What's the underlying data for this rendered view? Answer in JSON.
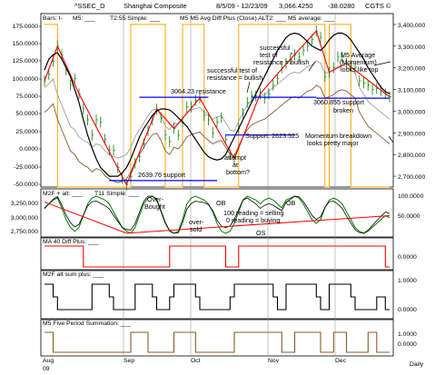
{
  "header": {
    "symbol": "^SSEC_D",
    "name": "Shanghai Composite",
    "dates": "8/5/09 - 12/23/09",
    "last": "3,066.4250",
    "change": "-38.0280",
    "copyright": "CGTS ©"
  },
  "colors": {
    "price_bars": "#008000",
    "m5": "#d3d3d3",
    "t2_simple": "#ff0000",
    "diff_alt2": "#ffa500",
    "m5_average": "#000000",
    "support_line": "#0000ff",
    "annotation_arrow": "#000000",
    "panel_red": "#ff0000",
    "panel_green": "#008000",
    "panel_black": "#000000",
    "panel_brown": "#8b5a2b"
  },
  "chart_data": [
    {
      "type": "line",
      "panel": "price",
      "legend": [
        "Bars: I-",
        "M5: ___",
        "T2.55 Simple: ___",
        "M5 M5 Avg Diff Plus (Close) ALT2: ___",
        "M5 average: ___"
      ],
      "x_labels": [
        "Aug",
        "Sep",
        "Oct",
        "Nov",
        "Dec"
      ],
      "x_sublabel": "09",
      "frequency": "Daily",
      "left_ticks": [
        "175.0000",
        "150.0000",
        "125.0000",
        "100.0000",
        "75.0000",
        "50.0000",
        "25.0000",
        "0.0000",
        "-25.0000",
        "-50.0000"
      ],
      "right_ticks": [
        "3,400,000",
        "3,300,000",
        "3,200,000",
        "3,100,000",
        "3,000,000",
        "2,900,000",
        "2,800,000",
        "2,700,000"
      ],
      "right_ylim": [
        2650,
        3450
      ],
      "left_ylim": [
        -65,
        180
      ],
      "price_close": [
        3140,
        3170,
        3230,
        3300,
        3260,
        3190,
        3120,
        3150,
        3080,
        3010,
        2960,
        2890,
        2960,
        2950,
        2870,
        2820,
        2820,
        2740,
        2690,
        2660,
        2700,
        2760,
        2790,
        2850,
        2910,
        2960,
        3010,
        2970,
        2890,
        2860,
        2920,
        2890,
        2950,
        3020,
        3020,
        3050,
        3060,
        2980,
        2960,
        2900,
        2950,
        2970,
        2870,
        2800,
        2780,
        2920,
        2990,
        3040,
        3070,
        3070,
        3080,
        3060,
        3080,
        3120,
        3150,
        3200,
        3220,
        3240,
        3260,
        3250,
        3280,
        3300,
        3330,
        3370,
        3340,
        3160,
        3180,
        3200,
        3250,
        3250,
        3220,
        3210,
        3200,
        3140,
        3130,
        3120,
        3100,
        3105,
        3095,
        3080,
        3066
      ],
      "m5_average": [
        3190,
        3240,
        3260,
        3270,
        3240,
        3200,
        3160,
        3100,
        3040,
        2960,
        2890,
        2830,
        2780,
        2740,
        2720,
        2700,
        2700,
        2700,
        2715,
        2740,
        2780,
        2830,
        2880,
        2920,
        2950,
        2980,
        3000,
        3010,
        3010,
        3005,
        2990,
        2970,
        2950,
        2930,
        2900,
        2870,
        2840,
        2810,
        2790,
        2780,
        2775,
        2780,
        2800,
        2840,
        2880,
        2920,
        2960,
        3000,
        3040,
        3080,
        3120,
        3160,
        3200,
        3240,
        3280,
        3310,
        3340,
        3355,
        3360,
        3355,
        3340,
        3320,
        3300,
        3290,
        3280,
        3300,
        3330,
        3350,
        3360,
        3360,
        3350,
        3330,
        3300,
        3270,
        3240,
        3200,
        3170,
        3140,
        3110,
        3090,
        3080
      ],
      "annotations": [
        "3064.23 resistance",
        "successful test of resistance = bullish",
        "successful test of resistance = bullish",
        "M5 Average (Momentum) looks like top",
        "3060.855 support broken",
        "Support: 2623.525",
        "Momentum breakdown looks pretty major",
        "2639.76 support",
        "attempt at bottom?"
      ]
    },
    {
      "type": "line",
      "panel": "m2f",
      "legend": [
        "M2F + alt: ___",
        "T11 Simple: ___"
      ],
      "left_ticks": [
        "3,250,000",
        "3,000,000",
        "2,750,000"
      ],
      "right_ticks": [
        "100.0000",
        "50.0000"
      ],
      "ylim": [
        0,
        100
      ],
      "annotations": [
        "Over-Bought",
        "over-sold",
        "OB",
        "OS",
        "OB",
        "100 reading = selling",
        "0 reading = buying"
      ]
    },
    {
      "type": "area",
      "panel": "ma40",
      "legend": [
        "MA 40 Diff Plus: ___"
      ],
      "right_ticks": [
        "0.0000"
      ]
    },
    {
      "type": "line",
      "panel": "m2f_alt",
      "legend": [
        "M2F alt sum plus: ___"
      ],
      "right_ticks": [
        "1.0000",
        "0.0000"
      ]
    },
    {
      "type": "line",
      "panel": "m5_five",
      "legend": [
        "M5 Five Period Summation: ___"
      ],
      "right_ticks": [
        "1.0000",
        "0.0000"
      ]
    }
  ]
}
